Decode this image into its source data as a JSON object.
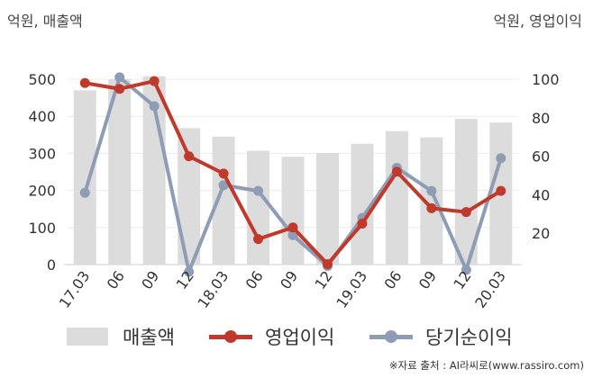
{
  "units": {
    "left": "억원, 매출액",
    "right": "억원, 영업이익"
  },
  "source": "※자료 출처 : AI라씨로(www.rassiro.com)",
  "chart_data": {
    "type": "bar",
    "categories": [
      "17.03",
      "06",
      "09",
      "12",
      "18.03",
      "06",
      "09",
      "12",
      "19.03",
      "06",
      "09",
      "12",
      "20.03"
    ],
    "left_axis": {
      "range": [
        0,
        500
      ],
      "ticks": [
        "0",
        "100",
        "200",
        "300",
        "400",
        "500"
      ]
    },
    "right_axis": {
      "range": [
        0,
        100
      ],
      "ticks": [
        "20",
        "40",
        "60",
        "80",
        "100"
      ]
    },
    "grid": true,
    "legend_position": "bottom",
    "series": [
      {
        "name": "매출액",
        "type": "bar",
        "axis": "left",
        "color": "#dcdcdc",
        "values": [
          470,
          500,
          508,
          368,
          345,
          307,
          291,
          301,
          326,
          360,
          343,
          393,
          383
        ]
      },
      {
        "name": "영업이익",
        "type": "line",
        "axis": "right",
        "color": "#c0392b",
        "values": [
          98,
          95,
          99,
          60,
          51,
          17,
          23,
          4,
          25,
          52,
          33,
          31,
          42
        ]
      },
      {
        "name": "당기순이익",
        "type": "line",
        "axis": "right",
        "color": "#8e9db5",
        "values": [
          41,
          101,
          86,
          0,
          45,
          42,
          19,
          3,
          28,
          54,
          42,
          1,
          59
        ]
      }
    ]
  }
}
